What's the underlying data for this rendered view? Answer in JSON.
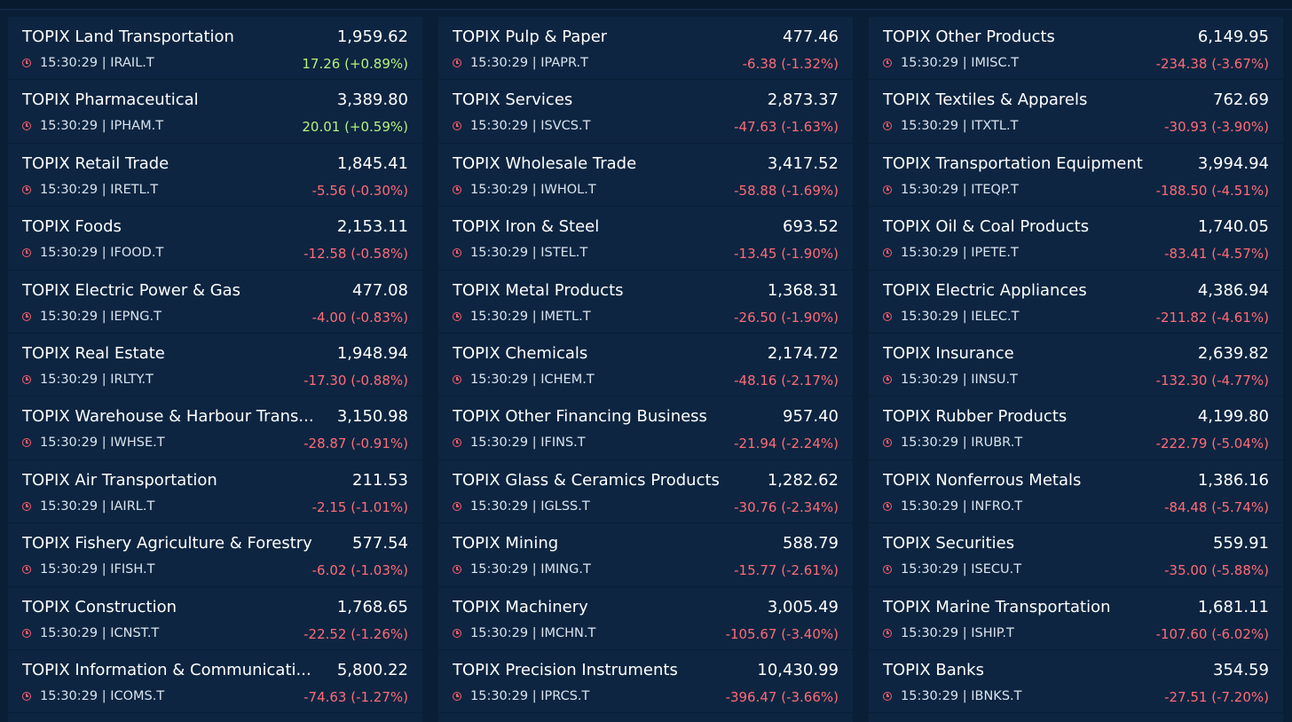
{
  "colors": {
    "positive": "#b5f07e",
    "negative": "#ff6b76",
    "clock": "#ff5c6c"
  },
  "columns": [
    [
      {
        "name": "TOPIX Land Transportation",
        "price": "1,959.62",
        "time": "15:30:29",
        "code": "IRAIL.T",
        "change": "17.26 (+0.89%)",
        "dir": "up"
      },
      {
        "name": "TOPIX Pharmaceutical",
        "price": "3,389.80",
        "time": "15:30:29",
        "code": "IPHAM.T",
        "change": "20.01 (+0.59%)",
        "dir": "up"
      },
      {
        "name": "TOPIX Retail Trade",
        "price": "1,845.41",
        "time": "15:30:29",
        "code": "IRETL.T",
        "change": "-5.56 (-0.30%)",
        "dir": "down"
      },
      {
        "name": "TOPIX Foods",
        "price": "2,153.11",
        "time": "15:30:29",
        "code": "IFOOD.T",
        "change": "-12.58 (-0.58%)",
        "dir": "down"
      },
      {
        "name": "TOPIX Electric Power & Gas",
        "price": "477.08",
        "time": "15:30:29",
        "code": "IEPNG.T",
        "change": "-4.00 (-0.83%)",
        "dir": "down"
      },
      {
        "name": "TOPIX Real Estate",
        "price": "1,948.94",
        "time": "15:30:29",
        "code": "IRLTY.T",
        "change": "-17.30 (-0.88%)",
        "dir": "down"
      },
      {
        "name": "TOPIX Warehouse & Harbour Trans...",
        "price": "3,150.98",
        "time": "15:30:29",
        "code": "IWHSE.T",
        "change": "-28.87 (-0.91%)",
        "dir": "down"
      },
      {
        "name": "TOPIX Air Transportation",
        "price": "211.53",
        "time": "15:30:29",
        "code": "IAIRL.T",
        "change": "-2.15 (-1.01%)",
        "dir": "down"
      },
      {
        "name": "TOPIX Fishery Agriculture & Forestry",
        "price": "577.54",
        "time": "15:30:29",
        "code": "IFISH.T",
        "change": "-6.02 (-1.03%)",
        "dir": "down"
      },
      {
        "name": "TOPIX Construction",
        "price": "1,768.65",
        "time": "15:30:29",
        "code": "ICNST.T",
        "change": "-22.52 (-1.26%)",
        "dir": "down"
      },
      {
        "name": "TOPIX Information & Communicati...",
        "price": "5,800.22",
        "time": "15:30:29",
        "code": "ICOMS.T",
        "change": "-74.63 (-1.27%)",
        "dir": "down"
      }
    ],
    [
      {
        "name": "TOPIX Pulp & Paper",
        "price": "477.46",
        "time": "15:30:29",
        "code": "IPAPR.T",
        "change": "-6.38 (-1.32%)",
        "dir": "down"
      },
      {
        "name": "TOPIX Services",
        "price": "2,873.37",
        "time": "15:30:29",
        "code": "ISVCS.T",
        "change": "-47.63 (-1.63%)",
        "dir": "down"
      },
      {
        "name": "TOPIX Wholesale Trade",
        "price": "3,417.52",
        "time": "15:30:29",
        "code": "IWHOL.T",
        "change": "-58.88 (-1.69%)",
        "dir": "down"
      },
      {
        "name": "TOPIX Iron & Steel",
        "price": "693.52",
        "time": "15:30:29",
        "code": "ISTEL.T",
        "change": "-13.45 (-1.90%)",
        "dir": "down"
      },
      {
        "name": "TOPIX Metal Products",
        "price": "1,368.31",
        "time": "15:30:29",
        "code": "IMETL.T",
        "change": "-26.50 (-1.90%)",
        "dir": "down"
      },
      {
        "name": "TOPIX Chemicals",
        "price": "2,174.72",
        "time": "15:30:29",
        "code": "ICHEM.T",
        "change": "-48.16 (-2.17%)",
        "dir": "down"
      },
      {
        "name": "TOPIX Other Financing Business",
        "price": "957.40",
        "time": "15:30:29",
        "code": "IFINS.T",
        "change": "-21.94 (-2.24%)",
        "dir": "down"
      },
      {
        "name": "TOPIX Glass & Ceramics Products",
        "price": "1,282.62",
        "time": "15:30:29",
        "code": "IGLSS.T",
        "change": "-30.76 (-2.34%)",
        "dir": "down"
      },
      {
        "name": "TOPIX Mining",
        "price": "588.79",
        "time": "15:30:29",
        "code": "IMING.T",
        "change": "-15.77 (-2.61%)",
        "dir": "down"
      },
      {
        "name": "TOPIX Machinery",
        "price": "3,005.49",
        "time": "15:30:29",
        "code": "IMCHN.T",
        "change": "-105.67 (-3.40%)",
        "dir": "down"
      },
      {
        "name": "TOPIX Precision Instruments",
        "price": "10,430.99",
        "time": "15:30:29",
        "code": "IPRCS.T",
        "change": "-396.47 (-3.66%)",
        "dir": "down"
      }
    ],
    [
      {
        "name": "TOPIX Other Products",
        "price": "6,149.95",
        "time": "15:30:29",
        "code": "IMISC.T",
        "change": "-234.38 (-3.67%)",
        "dir": "down"
      },
      {
        "name": "TOPIX Textiles & Apparels",
        "price": "762.69",
        "time": "15:30:29",
        "code": "ITXTL.T",
        "change": "-30.93 (-3.90%)",
        "dir": "down"
      },
      {
        "name": "TOPIX Transportation Equipment",
        "price": "3,994.94",
        "time": "15:30:29",
        "code": "ITEQP.T",
        "change": "-188.50 (-4.51%)",
        "dir": "down"
      },
      {
        "name": "TOPIX Oil & Coal Products",
        "price": "1,740.05",
        "time": "15:30:29",
        "code": "IPETE.T",
        "change": "-83.41 (-4.57%)",
        "dir": "down"
      },
      {
        "name": "TOPIX Electric Appliances",
        "price": "4,386.94",
        "time": "15:30:29",
        "code": "IELEC.T",
        "change": "-211.82 (-4.61%)",
        "dir": "down"
      },
      {
        "name": "TOPIX Insurance",
        "price": "2,639.82",
        "time": "15:30:29",
        "code": "IINSU.T",
        "change": "-132.30 (-4.77%)",
        "dir": "down"
      },
      {
        "name": "TOPIX Rubber Products",
        "price": "4,199.80",
        "time": "15:30:29",
        "code": "IRUBR.T",
        "change": "-222.79 (-5.04%)",
        "dir": "down"
      },
      {
        "name": "TOPIX Nonferrous Metals",
        "price": "1,386.16",
        "time": "15:30:29",
        "code": "INFRO.T",
        "change": "-84.48 (-5.74%)",
        "dir": "down"
      },
      {
        "name": "TOPIX Securities",
        "price": "559.91",
        "time": "15:30:29",
        "code": "ISECU.T",
        "change": "-35.00 (-5.88%)",
        "dir": "down"
      },
      {
        "name": "TOPIX Marine Transportation",
        "price": "1,681.11",
        "time": "15:30:29",
        "code": "ISHIP.T",
        "change": "-107.60 (-6.02%)",
        "dir": "down"
      },
      {
        "name": "TOPIX Banks",
        "price": "354.59",
        "time": "15:30:29",
        "code": "IBNKS.T",
        "change": "-27.51 (-7.20%)",
        "dir": "down"
      }
    ]
  ]
}
